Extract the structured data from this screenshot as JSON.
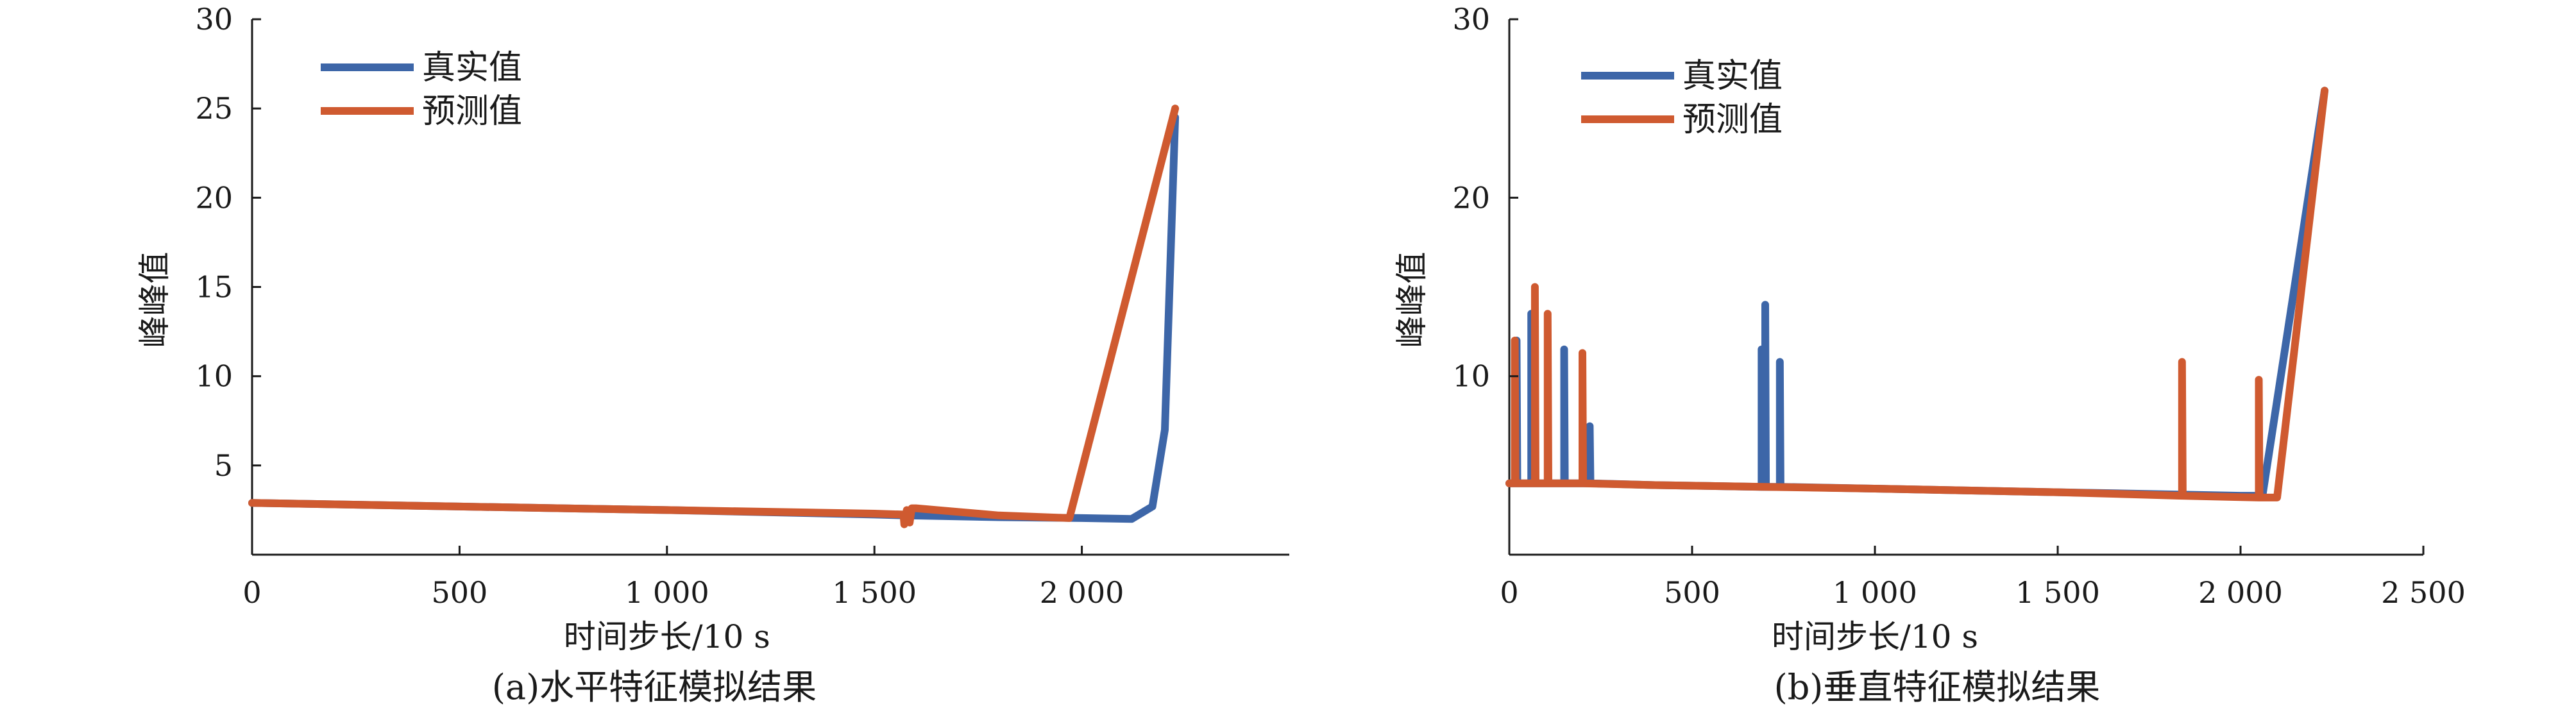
{
  "colors": {
    "true_series": "#3d66a8",
    "pred_series": "#cf5a30",
    "axis": "#1a1a1a"
  },
  "chart_data": [
    {
      "type": "line",
      "caption": "(a)水平特征模拟结果",
      "xlabel": "时间步长/10 s",
      "ylabel": "峰峰值",
      "xlim": [
        0,
        2500
      ],
      "ylim": [
        0,
        30
      ],
      "xticks": [
        0,
        500,
        1000,
        1500,
        2000
      ],
      "xtick_labels": [
        "0",
        "500",
        "1 000",
        "1 500",
        "2 000"
      ],
      "yticks": [
        5,
        10,
        15,
        20,
        25,
        30
      ],
      "ytick_labels": [
        "5",
        "10",
        "15",
        "20",
        "25",
        "30"
      ],
      "grid": false,
      "legend_position": "top-left",
      "series": [
        {
          "name": "真实值",
          "color": "#3d66a8",
          "points": [
            [
              0,
              2.9
            ],
            [
              500,
              2.7
            ],
            [
              1000,
              2.5
            ],
            [
              1500,
              2.25
            ],
            [
              1580,
              2.2
            ],
            [
              1800,
              2.1
            ],
            [
              2000,
              2.05
            ],
            [
              2120,
              2.0
            ],
            [
              2170,
              2.7
            ],
            [
              2200,
              7.0
            ],
            [
              2225,
              24.5
            ]
          ]
        },
        {
          "name": "预测值",
          "color": "#cf5a30",
          "points": [
            [
              0,
              2.9
            ],
            [
              500,
              2.7
            ],
            [
              1000,
              2.5
            ],
            [
              1500,
              2.3
            ],
            [
              1570,
              2.25
            ],
            [
              1572,
              1.7
            ],
            [
              1578,
              2.5
            ],
            [
              1585,
              1.8
            ],
            [
              1590,
              2.6
            ],
            [
              1600,
              2.6
            ],
            [
              1700,
              2.4
            ],
            [
              1800,
              2.2
            ],
            [
              1970,
              2.05
            ],
            [
              2225,
              25.0
            ]
          ]
        }
      ]
    },
    {
      "type": "line",
      "caption": "(b)垂直特征模拟结果",
      "xlabel": "时间步长/10 s",
      "ylabel": "峰峰值",
      "xlim": [
        0,
        2500
      ],
      "ylim": [
        0,
        30
      ],
      "xticks": [
        0,
        500,
        1000,
        1500,
        2000,
        2500
      ],
      "xtick_labels": [
        "0",
        "500",
        "1 000",
        "1 500",
        "2 000",
        "2 500"
      ],
      "yticks": [
        10,
        20,
        30
      ],
      "ytick_labels": [
        "10",
        "20",
        "30"
      ],
      "grid": false,
      "legend_position": "top-left",
      "series": [
        {
          "name": "真实值",
          "color": "#3d66a8",
          "points": [
            [
              0,
              4.0
            ],
            [
              20,
              4.0
            ],
            [
              20,
              12.0
            ],
            [
              22,
              4.0
            ],
            [
              60,
              4.0
            ],
            [
              60,
              13.5
            ],
            [
              62,
              4.0
            ],
            [
              100,
              4.0
            ],
            [
              150,
              4.0
            ],
            [
              150,
              11.5
            ],
            [
              152,
              4.0
            ],
            [
              220,
              4.0
            ],
            [
              220,
              7.2
            ],
            [
              222,
              4.0
            ],
            [
              400,
              3.9
            ],
            [
              690,
              3.8
            ],
            [
              690,
              11.5
            ],
            [
              692,
              3.8
            ],
            [
              700,
              3.8
            ],
            [
              700,
              14.0
            ],
            [
              702,
              3.8
            ],
            [
              740,
              3.8
            ],
            [
              740,
              10.8
            ],
            [
              742,
              3.8
            ],
            [
              1000,
              3.7
            ],
            [
              1500,
              3.5
            ],
            [
              2000,
              3.3
            ],
            [
              2060,
              3.3
            ],
            [
              2230,
              26.0
            ]
          ]
        },
        {
          "name": "预测值",
          "color": "#cf5a30",
          "points": [
            [
              0,
              4.0
            ],
            [
              15,
              4.0
            ],
            [
              15,
              12.0
            ],
            [
              17,
              4.0
            ],
            [
              70,
              4.0
            ],
            [
              70,
              15.0
            ],
            [
              72,
              4.0
            ],
            [
              105,
              4.0
            ],
            [
              105,
              13.5
            ],
            [
              107,
              4.0
            ],
            [
              200,
              4.0
            ],
            [
              200,
              11.3
            ],
            [
              202,
              4.0
            ],
            [
              400,
              3.9
            ],
            [
              700,
              3.8
            ],
            [
              1000,
              3.7
            ],
            [
              1500,
              3.5
            ],
            [
              1840,
              3.3
            ],
            [
              1840,
              10.8
            ],
            [
              1842,
              3.3
            ],
            [
              2050,
              3.2
            ],
            [
              2050,
              9.8
            ],
            [
              2052,
              3.2
            ],
            [
              2100,
              3.2
            ],
            [
              2230,
              26.0
            ]
          ]
        }
      ]
    }
  ]
}
